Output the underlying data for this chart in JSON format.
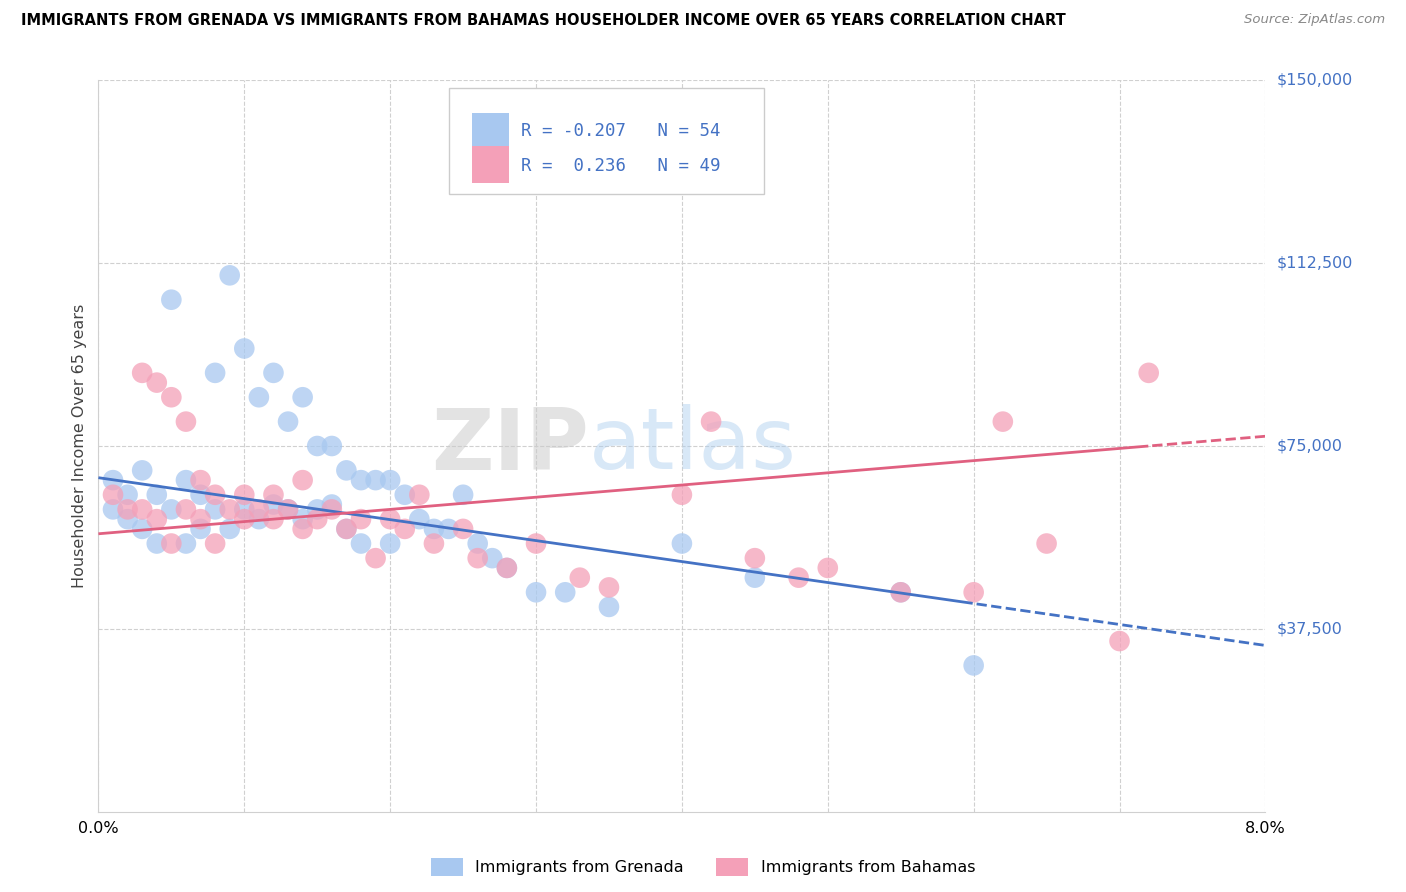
{
  "title": "IMMIGRANTS FROM GRENADA VS IMMIGRANTS FROM BAHAMAS HOUSEHOLDER INCOME OVER 65 YEARS CORRELATION CHART",
  "source": "Source: ZipAtlas.com",
  "ylabel": "Householder Income Over 65 years",
  "xlim": [
    0.0,
    0.08
  ],
  "ylim": [
    0,
    150000
  ],
  "grenada_R": -0.207,
  "grenada_N": 54,
  "bahamas_R": 0.236,
  "bahamas_N": 49,
  "grenada_color": "#a8c8f0",
  "bahamas_color": "#f4a0b8",
  "grenada_line_color": "#4472c4",
  "bahamas_line_color": "#e06080",
  "right_label_color": "#4472c4",
  "grenada_x": [
    0.001,
    0.001,
    0.002,
    0.002,
    0.003,
    0.003,
    0.004,
    0.004,
    0.005,
    0.005,
    0.006,
    0.006,
    0.007,
    0.007,
    0.008,
    0.008,
    0.009,
    0.009,
    0.01,
    0.01,
    0.011,
    0.011,
    0.012,
    0.012,
    0.013,
    0.013,
    0.014,
    0.014,
    0.015,
    0.015,
    0.016,
    0.016,
    0.017,
    0.017,
    0.018,
    0.018,
    0.019,
    0.02,
    0.02,
    0.021,
    0.022,
    0.023,
    0.024,
    0.025,
    0.026,
    0.027,
    0.028,
    0.03,
    0.032,
    0.035,
    0.04,
    0.045,
    0.055,
    0.06
  ],
  "grenada_y": [
    68000,
    62000,
    65000,
    60000,
    70000,
    58000,
    65000,
    55000,
    105000,
    62000,
    68000,
    55000,
    65000,
    58000,
    90000,
    62000,
    110000,
    58000,
    95000,
    62000,
    85000,
    60000,
    90000,
    63000,
    80000,
    62000,
    85000,
    60000,
    75000,
    62000,
    75000,
    63000,
    70000,
    58000,
    68000,
    55000,
    68000,
    68000,
    55000,
    65000,
    60000,
    58000,
    58000,
    65000,
    55000,
    52000,
    50000,
    45000,
    45000,
    42000,
    55000,
    48000,
    45000,
    30000
  ],
  "bahamas_x": [
    0.001,
    0.002,
    0.003,
    0.003,
    0.004,
    0.004,
    0.005,
    0.005,
    0.006,
    0.006,
    0.007,
    0.007,
    0.008,
    0.008,
    0.009,
    0.01,
    0.01,
    0.011,
    0.012,
    0.012,
    0.013,
    0.014,
    0.014,
    0.015,
    0.016,
    0.017,
    0.018,
    0.019,
    0.02,
    0.021,
    0.022,
    0.023,
    0.025,
    0.026,
    0.028,
    0.03,
    0.033,
    0.035,
    0.04,
    0.042,
    0.045,
    0.048,
    0.05,
    0.055,
    0.06,
    0.062,
    0.065,
    0.07,
    0.072
  ],
  "bahamas_y": [
    65000,
    62000,
    90000,
    62000,
    88000,
    60000,
    85000,
    55000,
    80000,
    62000,
    68000,
    60000,
    65000,
    55000,
    62000,
    65000,
    60000,
    62000,
    65000,
    60000,
    62000,
    68000,
    58000,
    60000,
    62000,
    58000,
    60000,
    52000,
    60000,
    58000,
    65000,
    55000,
    58000,
    52000,
    50000,
    55000,
    48000,
    46000,
    65000,
    80000,
    52000,
    48000,
    50000,
    45000,
    45000,
    80000,
    55000,
    35000,
    90000
  ]
}
